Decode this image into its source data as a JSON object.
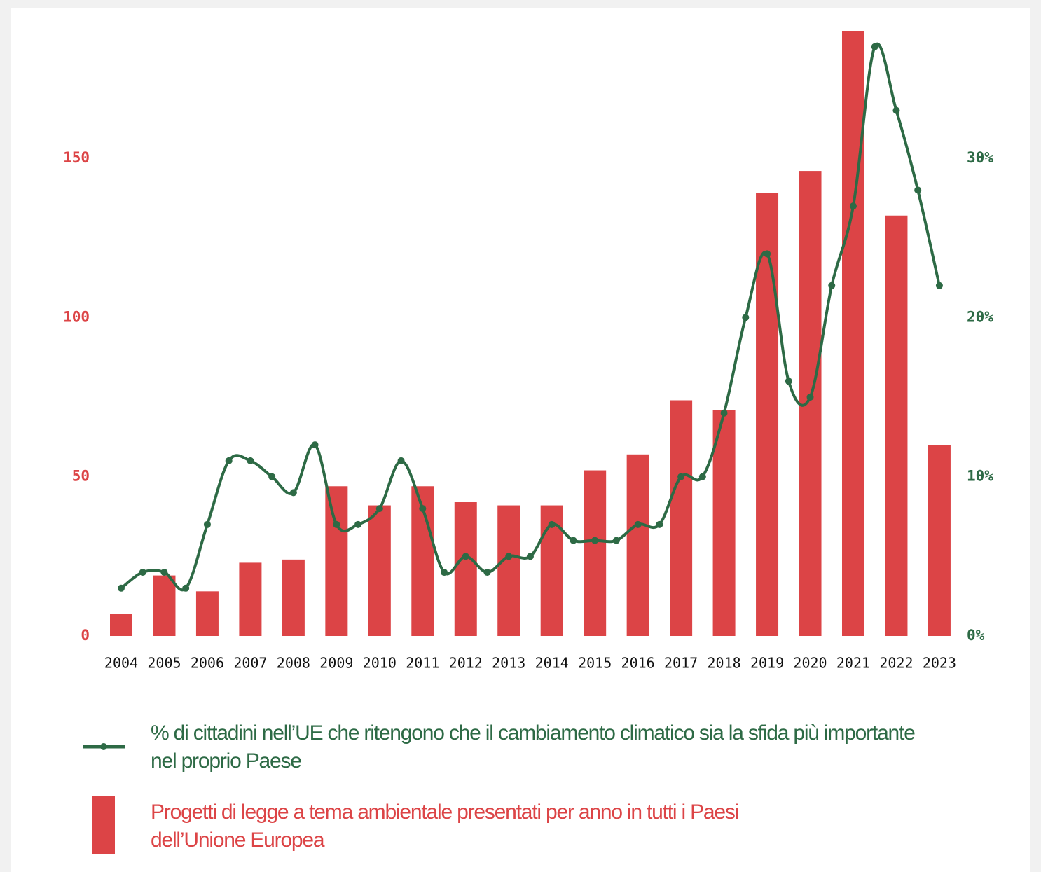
{
  "chart_data": {
    "type": "bar_line",
    "categories": [
      "2004",
      "2005",
      "2006",
      "2007",
      "2008",
      "2009",
      "2010",
      "2011",
      "2012",
      "2013",
      "2014",
      "2015",
      "2016",
      "2017",
      "2018",
      "2019",
      "2020",
      "2021",
      "2022",
      "2023"
    ],
    "series": [
      {
        "name": "Progetti di legge a tema ambientale presentati per anno in tutti i Paesi dell’Unione Europea",
        "type": "bar",
        "color": "#dc4446",
        "values": [
          7,
          19,
          14,
          23,
          24,
          47,
          41,
          47,
          42,
          41,
          41,
          52,
          57,
          74,
          71,
          139,
          146,
          190,
          132,
          60
        ]
      },
      {
        "name": "% di cittadini nell’UE che ritengono che il cambiamento climatico sia la sfida più importante nel proprio Paese",
        "type": "line",
        "axis": "y2",
        "color": "#2d6a45",
        "x": [
          2004,
          2004.5,
          2005,
          2005.5,
          2006,
          2006.5,
          2007,
          2007.5,
          2008,
          2008.5,
          2009,
          2009.5,
          2010,
          2010.5,
          2011,
          2011.5,
          2012,
          2012.5,
          2013,
          2013.5,
          2014,
          2014.5,
          2015,
          2015.5,
          2016,
          2016.5,
          2017,
          2017.5,
          2018,
          2018.5,
          2019,
          2019.5,
          2020,
          2020.5,
          2021,
          2021.5,
          2022,
          2022.5,
          2023
        ],
        "values": [
          3,
          4,
          4,
          3,
          7,
          11,
          11,
          10,
          9,
          12,
          7,
          7,
          8,
          11,
          8,
          4,
          5,
          4,
          5,
          5,
          7,
          6,
          6,
          6,
          7,
          7,
          10,
          10,
          14,
          20,
          24,
          16,
          15,
          22,
          27,
          37,
          33,
          28,
          22
        ]
      }
    ],
    "ylim": [
      0,
      190
    ],
    "yticks": [
      0,
      50,
      100,
      150
    ],
    "y2lim": [
      0,
      38
    ],
    "y2ticks": [
      {
        "value": 0,
        "label": "0%"
      },
      {
        "value": 10,
        "label": "10%"
      },
      {
        "value": 20,
        "label": "20%"
      },
      {
        "value": 30,
        "label": "30%"
      }
    ],
    "grid": false
  }
}
